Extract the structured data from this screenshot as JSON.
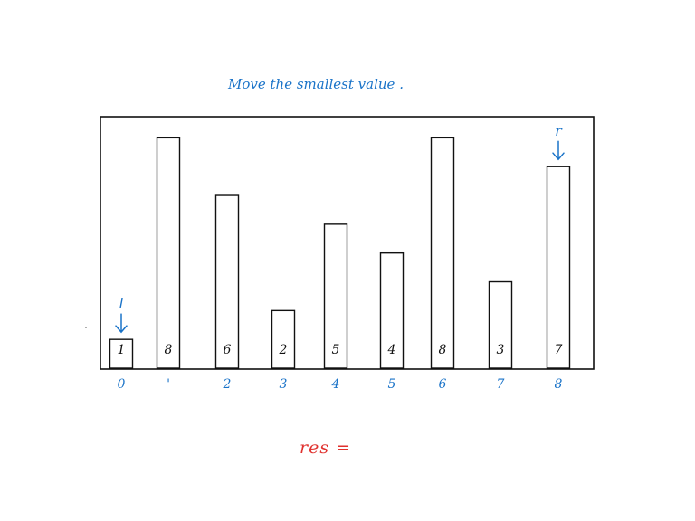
{
  "caption": "Move the smallest value .",
  "result_label": "res =",
  "colors": {
    "ink": "#111111",
    "annotation": "#1a73c8",
    "result": "#e0312e"
  },
  "chart_data": {
    "type": "bar",
    "categories": [
      "0",
      "1",
      "2",
      "3",
      "4",
      "5",
      "6",
      "7",
      "8"
    ],
    "values": [
      1,
      8,
      6,
      2,
      5,
      4,
      8,
      3,
      7
    ],
    "index_labels": [
      "0",
      "'",
      "2",
      "3",
      "4",
      "5",
      "6",
      "7",
      "8"
    ],
    "value_labels": [
      "1",
      "8",
      "6",
      "2",
      "5",
      "4",
      "8",
      "3",
      "7"
    ],
    "pointers": [
      {
        "label": "l",
        "index": 0
      },
      {
        "label": "r",
        "index": 8
      }
    ],
    "ylim": [
      0,
      8.2
    ]
  }
}
